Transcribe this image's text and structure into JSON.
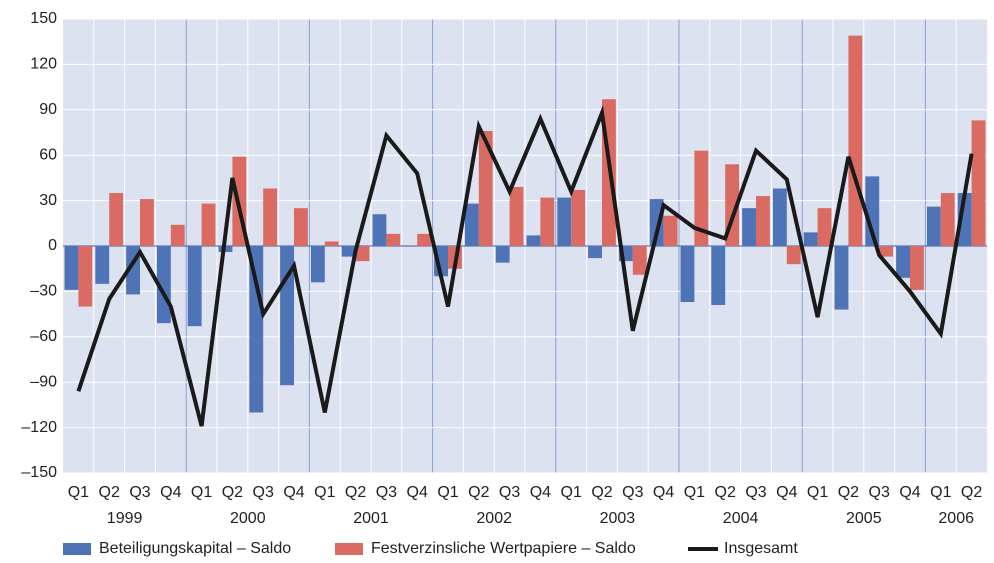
{
  "chart_data": {
    "type": "bar-line",
    "categories": [
      "Q1",
      "Q2",
      "Q3",
      "Q4",
      "Q1",
      "Q2",
      "Q3",
      "Q4",
      "Q1",
      "Q2",
      "Q3",
      "Q4",
      "Q1",
      "Q2",
      "Q3",
      "Q4",
      "Q1",
      "Q2",
      "Q3",
      "Q4",
      "Q1",
      "Q2",
      "Q3",
      "Q4",
      "Q1",
      "Q2",
      "Q3",
      "Q4",
      "Q1",
      "Q2"
    ],
    "years": [
      "1999",
      "2000",
      "2001",
      "2002",
      "2003",
      "2004",
      "2005",
      "2006"
    ],
    "series": [
      {
        "name": "Beteiligungskapital – Saldo",
        "type": "bar",
        "color": "#4f73b7",
        "values": [
          -29,
          -25,
          -32,
          -51,
          -53,
          -4,
          -110,
          -92,
          -24,
          -7,
          21,
          0,
          -20,
          28,
          -11,
          7,
          32,
          -8,
          -10,
          31,
          -37,
          -39,
          25,
          38,
          9,
          -42,
          46,
          -21,
          26,
          35
        ]
      },
      {
        "name": "Festverzinsliche Wertpapiere – Saldo",
        "type": "bar",
        "color": "#d96b63",
        "values": [
          -40,
          35,
          31,
          14,
          28,
          59,
          38,
          25,
          3,
          -10,
          8,
          8,
          -15,
          76,
          39,
          32,
          37,
          97,
          -19,
          20,
          63,
          54,
          33,
          -12,
          25,
          139,
          -7,
          -29,
          35,
          83
        ]
      },
      {
        "name": "Insgesamt",
        "type": "line",
        "color": "#1a1a1a",
        "values": [
          -96,
          -35,
          -4,
          -40,
          -119,
          45,
          -45,
          -13,
          -110,
          -3,
          73,
          48,
          -40,
          79,
          36,
          84,
          36,
          88,
          -56,
          27,
          12,
          5,
          63,
          44,
          -47,
          59,
          -6,
          -30,
          -58,
          61
        ]
      }
    ],
    "ylim": [
      -150,
      150
    ],
    "yticks": [
      {
        "value": -150,
        "label": "–150"
      },
      {
        "value": -120,
        "label": "–120"
      },
      {
        "value": -90,
        "label": "–90"
      },
      {
        "value": -60,
        "label": "–60"
      },
      {
        "value": -30,
        "label": "–30"
      },
      0,
      30,
      60,
      90,
      120,
      150
    ],
    "grid": true
  }
}
